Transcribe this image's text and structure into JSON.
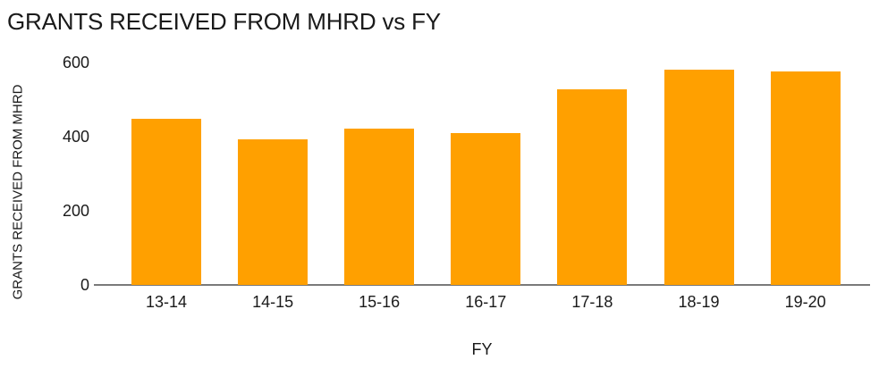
{
  "chart_data": {
    "type": "bar",
    "title": "GRANTS RECEIVED FROM MHRD vs FY",
    "xlabel": "FY",
    "ylabel": "GRANTS RECEIVED FROM MHRD",
    "categories": [
      "13-14",
      "14-15",
      "15-16",
      "16-17",
      "17-18",
      "18-19",
      "19-20"
    ],
    "values": [
      448,
      392,
      421,
      410,
      527,
      581,
      577
    ],
    "ylim": [
      0,
      600
    ],
    "yticks": [
      0,
      200,
      400,
      600
    ],
    "grid": false,
    "legend": "none",
    "colors": {
      "bar": "#FFA000",
      "axis_line": "#7a7a7a",
      "text": "#1a1a1a",
      "background": "#ffffff"
    }
  }
}
